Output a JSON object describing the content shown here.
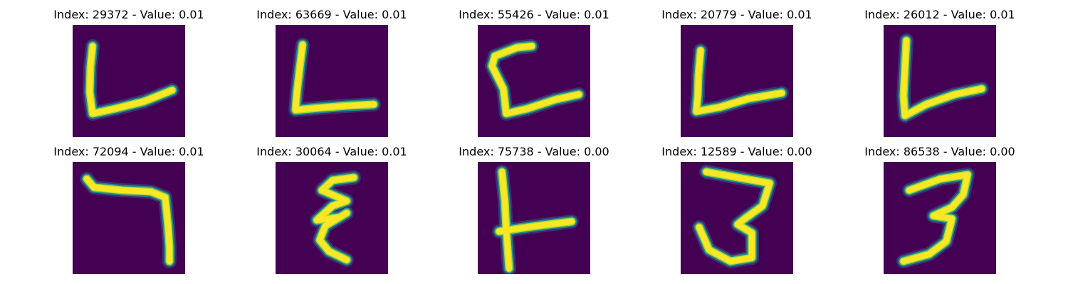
{
  "colors": {
    "background": "#440154",
    "stroke_core": "#fde725",
    "stroke_mid": "#a0da39",
    "stroke_edge": "#21918c",
    "stroke_halo": "#3b528b"
  },
  "panels": [
    {
      "title": "Index: 29372 - Value: 0.01",
      "glyph": "L-wide-slanted"
    },
    {
      "title": "Index: 63669 - Value: 0.01",
      "glyph": "L-flat"
    },
    {
      "title": "Index: 55426 - Value: 0.01",
      "glyph": "C-shape"
    },
    {
      "title": "Index: 20779 - Value: 0.01",
      "glyph": "L-slanted"
    },
    {
      "title": "Index: 26012 - Value: 0.01",
      "glyph": "L-slanted-2"
    },
    {
      "title": "Index: 72094 - Value: 0.01",
      "glyph": "seven-shape"
    },
    {
      "title": "Index: 30064 - Value: 0.01",
      "glyph": "epsilon-shape"
    },
    {
      "title": "Index: 75738 - Value: 0.00",
      "glyph": "y-shape"
    },
    {
      "title": "Index: 12589 - Value: 0.00",
      "glyph": "three-shape"
    },
    {
      "title": "Index: 86538 - Value: 0.00",
      "glyph": "three-shape-2"
    }
  ]
}
